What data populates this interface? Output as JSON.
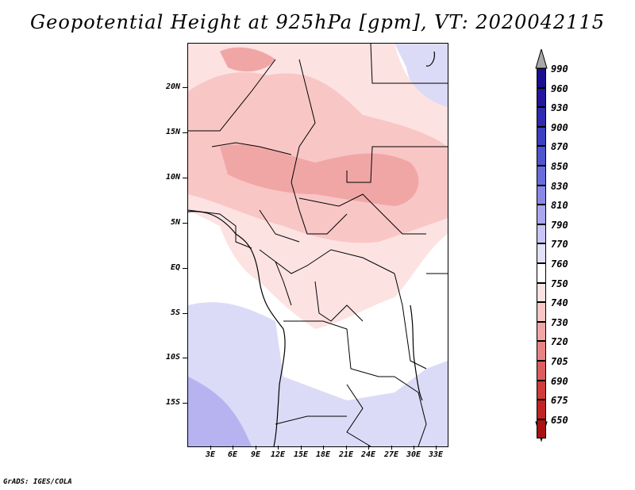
{
  "title": "Geopotential Height at 925hPa [gpm], VT: 2020042115",
  "footer": "GrADS: IGES/COLA",
  "map": {
    "lat_labels": [
      "20N",
      "15N",
      "10N",
      "5N",
      "EQ",
      "5S",
      "10S",
      "15S"
    ],
    "lon_labels": [
      "3E",
      "6E",
      "9E",
      "12E",
      "15E",
      "18E",
      "21E",
      "24E",
      "27E",
      "30E",
      "33E"
    ]
  },
  "colorbar": {
    "levels": [
      "990",
      "960",
      "930",
      "900",
      "870",
      "850",
      "830",
      "810",
      "790",
      "770",
      "760",
      "750",
      "740",
      "730",
      "720",
      "705",
      "690",
      "675",
      "650"
    ],
    "colors": [
      "#1a0f8f",
      "#25169e",
      "#2f2bb0",
      "#3c3fc0",
      "#4f54cf",
      "#6a6cdb",
      "#8a88e6",
      "#aaa6ef",
      "#c8c6f5",
      "#e2e1fa",
      "#ffffff",
      "#fde2e2",
      "#f9c6c6",
      "#f1a6a6",
      "#e88383",
      "#dc5e5e",
      "#cf3c3c",
      "#c12424",
      "#a81212"
    ],
    "top_triangle_color": "#a8a8a8",
    "bottom_triangle_color": "#c0201f"
  }
}
